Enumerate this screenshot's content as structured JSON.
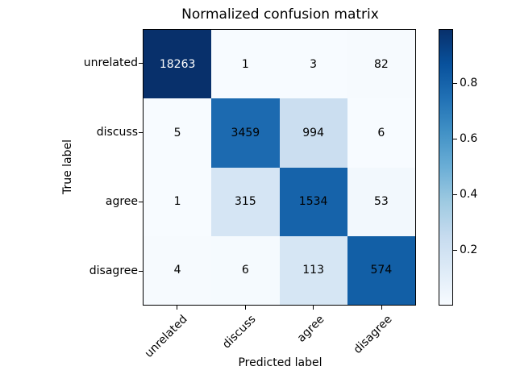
{
  "figure": {
    "background": "#ffffff",
    "text_color": "#000000"
  },
  "chart_data": {
    "type": "heatmap",
    "title": "Normalized confusion matrix",
    "xlabel": "Predicted label",
    "ylabel": "True label",
    "classes": [
      "unrelated",
      "discuss",
      "agree",
      "disagree"
    ],
    "x_tick_labels": [
      "unrelated",
      "discuss",
      "agree",
      "disagree"
    ],
    "y_tick_labels": [
      "unrelated",
      "discuss",
      "agree",
      "disagree"
    ],
    "cell_values": [
      [
        "18263",
        "1",
        "3",
        "82"
      ],
      [
        "5",
        "3459",
        "994",
        "6"
      ],
      [
        "1",
        "315",
        "1534",
        "53"
      ],
      [
        "4",
        "6",
        "113",
        "574"
      ]
    ],
    "row_normalized": [
      [
        0.995,
        0.0001,
        0.0002,
        0.0045
      ],
      [
        0.0011,
        0.775,
        0.223,
        0.0013
      ],
      [
        0.0005,
        0.166,
        0.806,
        0.028
      ],
      [
        0.0057,
        0.0086,
        0.162,
        0.823
      ]
    ],
    "cell_colors": [
      [
        "#08306b",
        "#f7fbff",
        "#f7fbff",
        "#f6fafe"
      ],
      [
        "#f7fbff",
        "#1c6ab0",
        "#cbdef0",
        "#f7fbff"
      ],
      [
        "#f7fbff",
        "#d5e5f4",
        "#1663aa",
        "#f2f8fd"
      ],
      [
        "#f6fafe",
        "#f5fafe",
        "#d6e6f4",
        "#125fa6"
      ]
    ],
    "cell_text_colors": [
      [
        "#ffffff",
        "#000000",
        "#000000",
        "#000000"
      ],
      [
        "#000000",
        "#000000",
        "#000000",
        "#000000"
      ],
      [
        "#000000",
        "#000000",
        "#000000",
        "#000000"
      ],
      [
        "#000000",
        "#000000",
        "#000000",
        "#000000"
      ]
    ],
    "colormap": "Blues",
    "grid": false,
    "legend": null,
    "colorbar": {
      "tick_labels": [
        "0.2",
        "0.4",
        "0.6",
        "0.8"
      ],
      "tick_values": [
        0.2,
        0.4,
        0.6,
        0.8
      ],
      "vmin": 0.0,
      "vmax": 0.995,
      "gradient_stops_bottom_to_top": [
        "#f7fbff",
        "#deebf7",
        "#c6dbef",
        "#9ecae1",
        "#6baed6",
        "#4292c6",
        "#2171b5",
        "#08519c",
        "#08306b"
      ]
    }
  }
}
